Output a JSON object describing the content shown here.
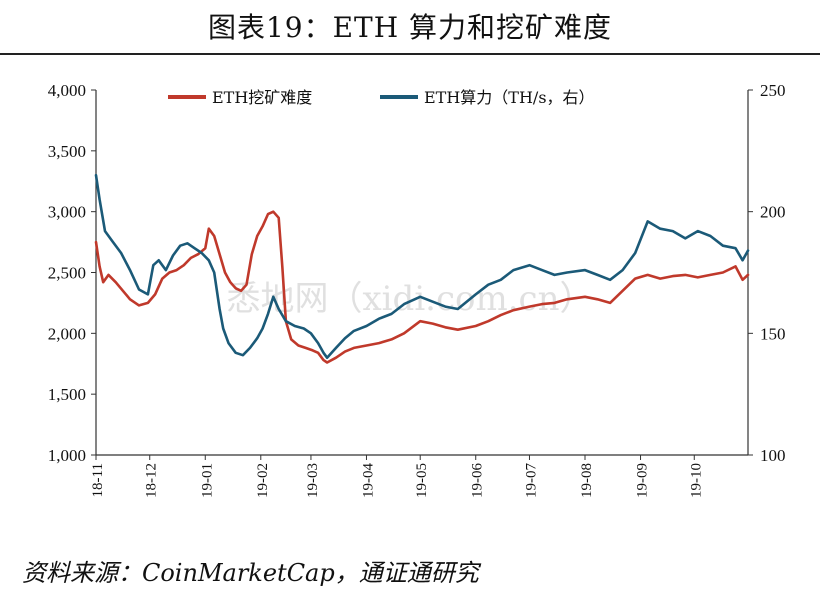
{
  "title": "图表19：ETH 算力和挖矿难度",
  "source": "资料来源：CoinMarketCap，通证通研究",
  "watermark": "悉地网（xidi.com.cn）",
  "chart_data": {
    "type": "line",
    "x_start": "2018-11",
    "x_end": "2019-10-31",
    "x_ticks": [
      "18-11",
      "18-12",
      "19-01",
      "19-02",
      "19-03",
      "19-04",
      "19-05",
      "19-06",
      "19-07",
      "19-08",
      "19-09",
      "19-10"
    ],
    "y_left": {
      "lim": [
        1000,
        4000
      ],
      "ticks": [
        "1,000",
        "1,500",
        "2,000",
        "2,500",
        "3,000",
        "3,500",
        "4,000"
      ]
    },
    "y_right": {
      "lim": [
        100,
        250
      ],
      "ticks": [
        "100",
        "150",
        "200",
        "250"
      ]
    },
    "legend": {
      "placement": "top"
    },
    "series": [
      {
        "name": "ETH挖矿难度",
        "axis": "left",
        "color": "#c0392b",
        "points": [
          [
            "2018-11-01",
            2750
          ],
          [
            "2018-11-03",
            2550
          ],
          [
            "2018-11-05",
            2420
          ],
          [
            "2018-11-08",
            2480
          ],
          [
            "2018-11-12",
            2420
          ],
          [
            "2018-11-16",
            2350
          ],
          [
            "2018-11-20",
            2280
          ],
          [
            "2018-11-25",
            2230
          ],
          [
            "2018-11-30",
            2250
          ],
          [
            "2018-12-04",
            2320
          ],
          [
            "2018-12-08",
            2450
          ],
          [
            "2018-12-12",
            2500
          ],
          [
            "2018-12-16",
            2520
          ],
          [
            "2018-12-20",
            2560
          ],
          [
            "2018-12-24",
            2620
          ],
          [
            "2018-12-28",
            2650
          ],
          [
            "2019-01-01",
            2700
          ],
          [
            "2019-01-03",
            2860
          ],
          [
            "2019-01-06",
            2800
          ],
          [
            "2019-01-09",
            2650
          ],
          [
            "2019-01-12",
            2500
          ],
          [
            "2019-01-15",
            2420
          ],
          [
            "2019-01-18",
            2370
          ],
          [
            "2019-01-21",
            2350
          ],
          [
            "2019-01-24",
            2400
          ],
          [
            "2019-01-27",
            2650
          ],
          [
            "2019-01-30",
            2800
          ],
          [
            "2019-02-02",
            2880
          ],
          [
            "2019-02-05",
            2980
          ],
          [
            "2019-02-08",
            3000
          ],
          [
            "2019-02-11",
            2950
          ],
          [
            "2019-02-13",
            2550
          ],
          [
            "2019-02-15",
            2100
          ],
          [
            "2019-02-18",
            1950
          ],
          [
            "2019-02-22",
            1900
          ],
          [
            "2019-02-26",
            1880
          ],
          [
            "2019-03-02",
            1860
          ],
          [
            "2019-03-05",
            1840
          ],
          [
            "2019-03-08",
            1780
          ],
          [
            "2019-03-10",
            1760
          ],
          [
            "2019-03-15",
            1800
          ],
          [
            "2019-03-20",
            1850
          ],
          [
            "2019-03-25",
            1880
          ],
          [
            "2019-04-01",
            1900
          ],
          [
            "2019-04-08",
            1920
          ],
          [
            "2019-04-15",
            1950
          ],
          [
            "2019-04-22",
            2000
          ],
          [
            "2019-05-01",
            2100
          ],
          [
            "2019-05-08",
            2080
          ],
          [
            "2019-05-15",
            2050
          ],
          [
            "2019-05-22",
            2030
          ],
          [
            "2019-06-01",
            2060
          ],
          [
            "2019-06-08",
            2100
          ],
          [
            "2019-06-15",
            2150
          ],
          [
            "2019-06-22",
            2190
          ],
          [
            "2019-07-01",
            2220
          ],
          [
            "2019-07-08",
            2240
          ],
          [
            "2019-07-15",
            2250
          ],
          [
            "2019-07-22",
            2280
          ],
          [
            "2019-08-01",
            2300
          ],
          [
            "2019-08-08",
            2280
          ],
          [
            "2019-08-15",
            2250
          ],
          [
            "2019-08-22",
            2350
          ],
          [
            "2019-08-29",
            2450
          ],
          [
            "2019-09-05",
            2480
          ],
          [
            "2019-09-12",
            2450
          ],
          [
            "2019-09-19",
            2470
          ],
          [
            "2019-09-26",
            2480
          ],
          [
            "2019-10-03",
            2460
          ],
          [
            "2019-10-10",
            2480
          ],
          [
            "2019-10-17",
            2500
          ],
          [
            "2019-10-24",
            2550
          ],
          [
            "2019-10-28",
            2440
          ],
          [
            "2019-10-31",
            2480
          ]
        ]
      },
      {
        "name": "ETH算力（TH/s，右）",
        "axis": "right",
        "color": "#1b5a78",
        "points": [
          [
            "2018-11-01",
            215
          ],
          [
            "2018-11-03",
            205
          ],
          [
            "2018-11-06",
            192
          ],
          [
            "2018-11-10",
            188
          ],
          [
            "2018-11-15",
            183
          ],
          [
            "2018-11-20",
            176
          ],
          [
            "2018-11-25",
            168
          ],
          [
            "2018-11-30",
            166
          ],
          [
            "2018-12-03",
            178
          ],
          [
            "2018-12-06",
            180
          ],
          [
            "2018-12-10",
            176
          ],
          [
            "2018-12-14",
            182
          ],
          [
            "2018-12-18",
            186
          ],
          [
            "2018-12-22",
            187
          ],
          [
            "2018-12-26",
            185
          ],
          [
            "2018-12-30",
            183
          ],
          [
            "2019-01-03",
            180
          ],
          [
            "2019-01-06",
            175
          ],
          [
            "2019-01-09",
            160
          ],
          [
            "2019-01-11",
            152
          ],
          [
            "2019-01-14",
            146
          ],
          [
            "2019-01-18",
            142
          ],
          [
            "2019-01-22",
            141
          ],
          [
            "2019-01-26",
            144
          ],
          [
            "2019-01-30",
            148
          ],
          [
            "2019-02-02",
            152
          ],
          [
            "2019-02-05",
            158
          ],
          [
            "2019-02-08",
            165
          ],
          [
            "2019-02-11",
            160
          ],
          [
            "2019-02-15",
            155
          ],
          [
            "2019-02-20",
            153
          ],
          [
            "2019-02-25",
            152
          ],
          [
            "2019-03-01",
            150
          ],
          [
            "2019-03-05",
            146
          ],
          [
            "2019-03-08",
            142
          ],
          [
            "2019-03-10",
            140
          ],
          [
            "2019-03-15",
            144
          ],
          [
            "2019-03-20",
            148
          ],
          [
            "2019-03-25",
            151
          ],
          [
            "2019-04-01",
            153
          ],
          [
            "2019-04-08",
            156
          ],
          [
            "2019-04-15",
            158
          ],
          [
            "2019-04-22",
            162
          ],
          [
            "2019-05-01",
            165
          ],
          [
            "2019-05-08",
            163
          ],
          [
            "2019-05-15",
            161
          ],
          [
            "2019-05-22",
            160
          ],
          [
            "2019-06-01",
            166
          ],
          [
            "2019-06-08",
            170
          ],
          [
            "2019-06-15",
            172
          ],
          [
            "2019-06-22",
            176
          ],
          [
            "2019-07-01",
            178
          ],
          [
            "2019-07-08",
            176
          ],
          [
            "2019-07-15",
            174
          ],
          [
            "2019-07-22",
            175
          ],
          [
            "2019-08-01",
            176
          ],
          [
            "2019-08-08",
            174
          ],
          [
            "2019-08-15",
            172
          ],
          [
            "2019-08-22",
            176
          ],
          [
            "2019-08-29",
            183
          ],
          [
            "2019-09-05",
            196
          ],
          [
            "2019-09-12",
            193
          ],
          [
            "2019-09-19",
            192
          ],
          [
            "2019-09-26",
            189
          ],
          [
            "2019-10-03",
            192
          ],
          [
            "2019-10-10",
            190
          ],
          [
            "2019-10-17",
            186
          ],
          [
            "2019-10-24",
            185
          ],
          [
            "2019-10-28",
            180
          ],
          [
            "2019-10-31",
            184
          ]
        ]
      }
    ]
  }
}
